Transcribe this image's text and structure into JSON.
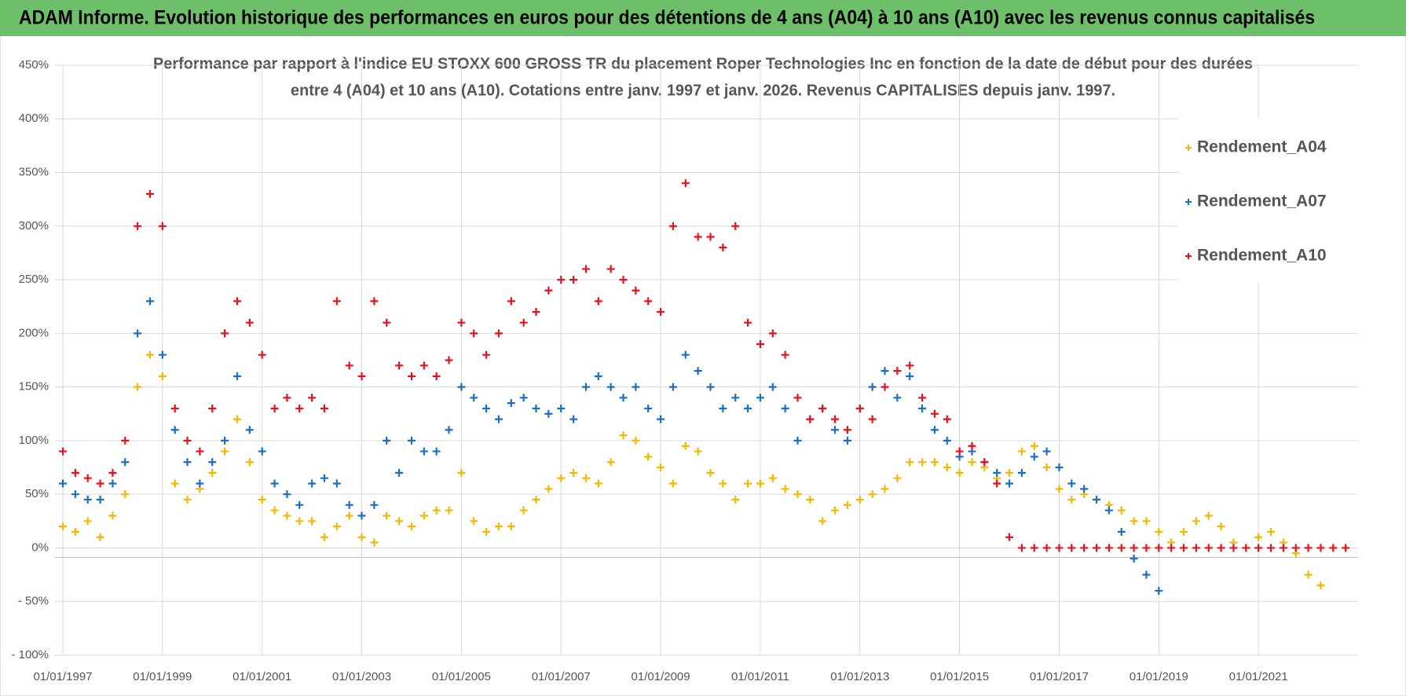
{
  "chart_data": {
    "type": "scatter",
    "title": "ADAM Informe. Evolution historique des performances en euros pour des détentions de 4 ans (A04) à 10 ans (A10) avec les revenus connus capitalisés",
    "subtitle": [
      "Performance par rapport à l'indice EU STOXX 600 GROSS TR  du placement Roper Technologies Inc en fonction de la date de début pour des durées",
      "entre 4 (A04) et 10 ans (A10).  Cotations entre janv. 1997 et janv. 2026. Revenus CAPITALISES depuis janv. 1997."
    ],
    "x": [
      "01/01/1997",
      "01/04/1997",
      "01/07/1997",
      "01/10/1997",
      "01/01/1998",
      "01/04/1998",
      "01/07/1998",
      "01/10/1998",
      "01/01/1999",
      "01/04/1999",
      "01/07/1999",
      "01/10/1999",
      "01/01/2000",
      "01/04/2000",
      "01/07/2000",
      "01/10/2000",
      "01/01/2001",
      "01/04/2001",
      "01/07/2001",
      "01/10/2001",
      "01/01/2002",
      "01/04/2002",
      "01/07/2002",
      "01/10/2002",
      "01/01/2003",
      "01/04/2003",
      "01/07/2003",
      "01/10/2003",
      "01/01/2004",
      "01/04/2004",
      "01/07/2004",
      "01/10/2004",
      "01/01/2005",
      "01/04/2005",
      "01/07/2005",
      "01/10/2005",
      "01/01/2006",
      "01/04/2006",
      "01/07/2006",
      "01/10/2006",
      "01/01/2007",
      "01/04/2007",
      "01/07/2007",
      "01/10/2007",
      "01/01/2008",
      "01/04/2008",
      "01/07/2008",
      "01/10/2008",
      "01/01/2009",
      "01/04/2009",
      "01/07/2009",
      "01/10/2009",
      "01/01/2010",
      "01/04/2010",
      "01/07/2010",
      "01/10/2010",
      "01/01/2011",
      "01/04/2011",
      "01/07/2011",
      "01/10/2011",
      "01/01/2012",
      "01/04/2012",
      "01/07/2012",
      "01/10/2012",
      "01/01/2013",
      "01/04/2013",
      "01/07/2013",
      "01/10/2013",
      "01/01/2014",
      "01/04/2014",
      "01/07/2014",
      "01/10/2014",
      "01/01/2015",
      "01/04/2015",
      "01/07/2015",
      "01/10/2015",
      "01/01/2016",
      "01/04/2016",
      "01/07/2016",
      "01/10/2016",
      "01/01/2017",
      "01/04/2017",
      "01/07/2017",
      "01/10/2017",
      "01/01/2018",
      "01/04/2018",
      "01/07/2018",
      "01/10/2018",
      "01/01/2019",
      "01/04/2019",
      "01/07/2019",
      "01/10/2019",
      "01/01/2020",
      "01/04/2020",
      "01/07/2020",
      "01/10/2020",
      "01/01/2021",
      "01/04/2021",
      "01/07/2021",
      "01/10/2021",
      "01/01/2022",
      "01/04/2022",
      "01/07/2022",
      "01/10/2022"
    ],
    "series": [
      {
        "name": "Rendement_A04",
        "color": "#f5b800",
        "values": [
          20,
          15,
          25,
          10,
          30,
          50,
          150,
          180,
          160,
          60,
          45,
          55,
          70,
          90,
          120,
          80,
          45,
          35,
          30,
          25,
          25,
          10,
          20,
          30,
          10,
          5,
          30,
          25,
          20,
          30,
          35,
          35,
          70,
          25,
          15,
          20,
          20,
          35,
          45,
          55,
          65,
          70,
          65,
          60,
          80,
          105,
          100,
          85,
          75,
          60,
          95,
          90,
          70,
          60,
          45,
          60,
          60,
          65,
          55,
          50,
          45,
          25,
          35,
          40,
          45,
          50,
          55,
          65,
          80,
          80,
          80,
          75,
          70,
          80,
          75,
          65,
          70,
          90,
          95,
          75,
          55,
          45,
          50,
          45,
          40,
          35,
          25,
          25,
          15,
          5,
          15,
          25,
          30,
          20,
          5,
          0,
          10,
          15,
          5,
          -5,
          -25,
          -35,
          null,
          null
        ]
      },
      {
        "name": "Rendement_A07",
        "color": "#1a6fc0",
        "values": [
          60,
          50,
          45,
          45,
          60,
          80,
          200,
          230,
          180,
          110,
          80,
          60,
          80,
          100,
          160,
          110,
          90,
          60,
          50,
          40,
          60,
          65,
          60,
          40,
          30,
          40,
          100,
          70,
          100,
          90,
          90,
          110,
          150,
          140,
          130,
          120,
          135,
          140,
          130,
          125,
          130,
          120,
          150,
          160,
          150,
          140,
          150,
          130,
          120,
          150,
          180,
          165,
          150,
          130,
          140,
          130,
          140,
          150,
          130,
          100,
          120,
          130,
          110,
          100,
          130,
          150,
          165,
          140,
          160,
          130,
          110,
          100,
          85,
          90,
          80,
          70,
          60,
          70,
          85,
          90,
          75,
          60,
          55,
          45,
          35,
          15,
          -10,
          -25,
          -40,
          null,
          null,
          null,
          null,
          null,
          null,
          null,
          null,
          null,
          null,
          null,
          null,
          null,
          null,
          null
        ]
      },
      {
        "name": "Rendement_A10",
        "color": "#e8101a",
        "values": [
          90,
          70,
          65,
          60,
          70,
          100,
          300,
          330,
          300,
          130,
          100,
          90,
          130,
          200,
          230,
          210,
          180,
          130,
          140,
          130,
          140,
          130,
          230,
          170,
          160,
          230,
          210,
          170,
          160,
          170,
          160,
          175,
          210,
          200,
          180,
          200,
          230,
          210,
          220,
          240,
          250,
          250,
          260,
          230,
          260,
          250,
          240,
          230,
          220,
          300,
          340,
          290,
          290,
          280,
          300,
          210,
          190,
          200,
          180,
          140,
          120,
          130,
          120,
          110,
          130,
          120,
          150,
          165,
          170,
          140,
          125,
          120,
          90,
          95,
          80,
          60,
          10,
          0,
          0,
          0,
          0,
          0,
          0,
          0,
          0,
          0,
          0,
          0,
          0,
          0,
          0,
          0,
          0,
          0,
          0,
          0,
          0,
          0,
          0,
          0,
          0,
          0,
          0,
          0
        ]
      }
    ],
    "xlim": [
      "01/01/1997",
      "01/01/2023"
    ],
    "xticks": [
      "01/01/1997",
      "01/01/1999",
      "01/01/2001",
      "01/01/2003",
      "01/01/2005",
      "01/01/2007",
      "01/01/2009",
      "01/01/2011",
      "01/01/2013",
      "01/01/2015",
      "01/01/2017",
      "01/01/2019",
      "01/01/2021"
    ],
    "ylim": [
      -100,
      450
    ],
    "yticks": [
      {
        "value": -100,
        "label": "- 100%"
      },
      {
        "value": -50,
        "label": "- 50%"
      },
      {
        "value": 0,
        "label": "0%"
      },
      {
        "value": 50,
        "label": "50%"
      },
      {
        "value": 100,
        "label": "100%"
      },
      {
        "value": 150,
        "label": "150%"
      },
      {
        "value": 200,
        "label": "200%"
      },
      {
        "value": 250,
        "label": "250%"
      },
      {
        "value": 300,
        "label": "300%"
      },
      {
        "value": 350,
        "label": "350%"
      },
      {
        "value": 400,
        "label": "400%"
      },
      {
        "value": 450,
        "label": "450%"
      }
    ],
    "grid": true
  }
}
